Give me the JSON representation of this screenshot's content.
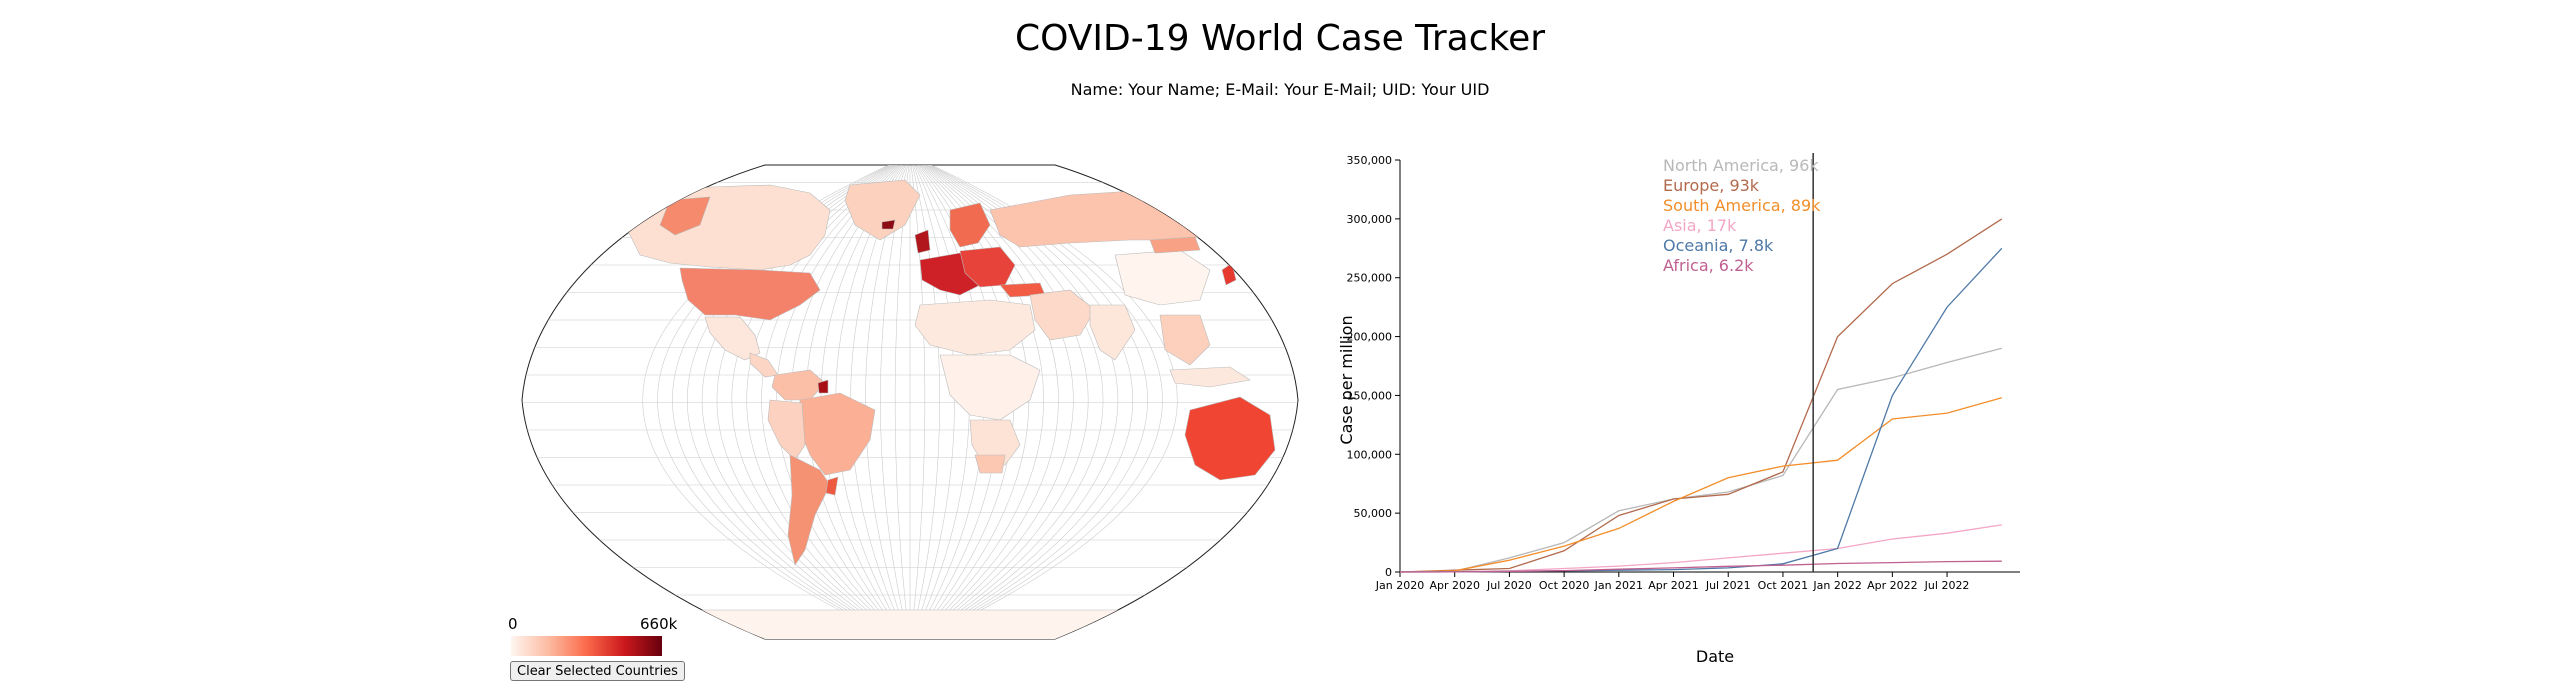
{
  "header": {
    "title": "COVID-19 World Case Tracker",
    "subtitle": "Name: Your Name; E-Mail: Your E-Mail; UID: Your UID"
  },
  "map": {
    "scale_min_label": "0",
    "scale_max_label": "660k",
    "scale_colors": [
      "#fff5f0",
      "#fcbba1",
      "#fb6a4a",
      "#cb181d",
      "#67000d"
    ],
    "clear_button_label": "Clear Selected Countries"
  },
  "chart_data": {
    "type": "line",
    "xlabel": "Date",
    "ylabel": "Case per million",
    "ylim": [
      0,
      350000
    ],
    "y_ticks": [
      "0",
      "50,000",
      "100,000",
      "150,000",
      "200,000",
      "250,000",
      "300,000",
      "350,000"
    ],
    "x_ticks": [
      "Jan 2020",
      "Apr 2020",
      "Jul 2020",
      "Oct 2020",
      "Jan 2021",
      "Apr 2021",
      "Jul 2021",
      "Oct 2021",
      "Jan 2022",
      "Apr 2022",
      "Jul 2022"
    ],
    "x_months": [
      "2020-01",
      "2020-04",
      "2020-07",
      "2020-10",
      "2021-01",
      "2021-04",
      "2021-07",
      "2021-10",
      "2022-01",
      "2022-04",
      "2022-07",
      "2022-10"
    ],
    "cursor_date": "2021-11",
    "series": [
      {
        "name": "North America",
        "legend": "North America, 96k",
        "color": "#b8b8b8",
        "values": [
          0,
          800,
          12000,
          25000,
          52000,
          62000,
          68000,
          82000,
          155000,
          165000,
          178000,
          190000
        ]
      },
      {
        "name": "Europe",
        "legend": "Europe, 93k",
        "color": "#b26a4d",
        "values": [
          0,
          1500,
          3000,
          18000,
          48000,
          62000,
          66000,
          85000,
          200000,
          245000,
          270000,
          300000
        ]
      },
      {
        "name": "South America",
        "legend": "South America, 89k",
        "color": "#f28e2b",
        "values": [
          0,
          1000,
          10000,
          22000,
          37000,
          60000,
          80000,
          90000,
          95000,
          130000,
          135000,
          148000
        ]
      },
      {
        "name": "Asia",
        "legend": "Asia, 17k",
        "color": "#f4a6c6",
        "values": [
          0,
          200,
          1000,
          3000,
          5000,
          8000,
          12000,
          16000,
          20000,
          28000,
          33000,
          40000
        ]
      },
      {
        "name": "Oceania",
        "legend": "Oceania, 7.8k",
        "color": "#4e79a7",
        "values": [
          0,
          200,
          500,
          1000,
          1500,
          2000,
          3500,
          7000,
          20000,
          150000,
          225000,
          275000
        ]
      },
      {
        "name": "Africa",
        "legend": "Africa, 6.2k",
        "color": "#c06090",
        "values": [
          0,
          100,
          500,
          1200,
          2500,
          3500,
          4800,
          5800,
          7200,
          8000,
          8800,
          9200
        ]
      }
    ]
  }
}
